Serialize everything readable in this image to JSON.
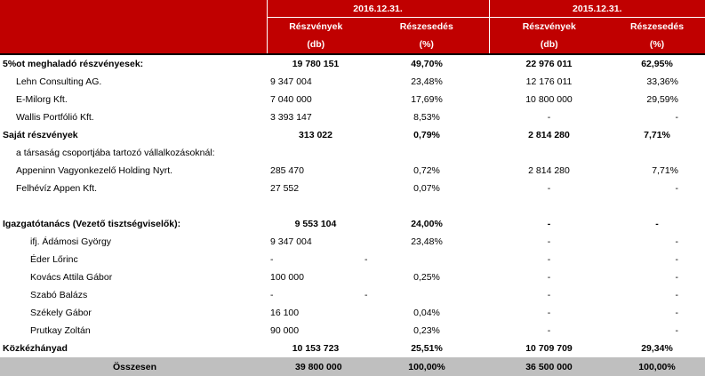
{
  "header": {
    "year1": "2016.12.31.",
    "year2": "2015.12.31.",
    "col_shares": "Részvények",
    "col_stake": "Részesedés",
    "unit_shares": "(db)",
    "unit_stake": "(%)"
  },
  "rows": [
    {
      "label": "5%ot meghaladó részvényesek:",
      "v1": "19 780 151",
      "p1": "49,70%",
      "v2": "22 976 011",
      "p2": "62,95%"
    },
    {
      "label": "Lehn Consulting AG.",
      "v1": "9 347 004",
      "p1": "23,48%",
      "v2": "12 176 011",
      "p2": "33,36%"
    },
    {
      "label": "E-Milorg Kft.",
      "v1": "7 040 000",
      "p1": "17,69%",
      "v2": "10 800 000",
      "p2": "29,59%"
    },
    {
      "label": "Wallis Portfólió Kft.",
      "v1": "3 393 147",
      "p1": "8,53%",
      "v2": "-",
      "p2": "-"
    },
    {
      "label": "Saját részvények",
      "v1": "313 022",
      "p1": "0,79%",
      "v2": "2 814 280",
      "p2": "7,71%"
    },
    {
      "label": "a társaság csoportjába tartozó vállalkozásoknál:",
      "v1": "",
      "p1": "",
      "v2": "",
      "p2": ""
    },
    {
      "label": "Appeninn Vagyonkezelő Holding Nyrt.",
      "v1": "285 470",
      "p1": "0,72%",
      "v2": "2 814 280",
      "p2": "7,71%"
    },
    {
      "label": "Felhévíz Appen Kft.",
      "v1": "27 552",
      "p1": "0,07%",
      "v2": "-",
      "p2": "-"
    },
    {
      "label": "",
      "v1": "",
      "p1": "",
      "v2": "",
      "p2": ""
    },
    {
      "label": "Igazgatótanács (Vezető tisztségviselők):",
      "v1": "9 553 104",
      "p1": "24,00%",
      "v2": "-",
      "p2": "-"
    },
    {
      "label": "ifj. Ádámosi György",
      "v1": "9 347 004",
      "p1": "23,48%",
      "v2": "-",
      "p2": "-"
    },
    {
      "label": "Éder Lőrinc",
      "v1": "-",
      "p1": "-",
      "v2": "-",
      "p2": "-"
    },
    {
      "label": "Kovács Attila Gábor",
      "v1": "100 000",
      "p1": "0,25%",
      "v2": "-",
      "p2": "-"
    },
    {
      "label": "Szabó Balázs",
      "v1": "-",
      "p1": "-",
      "v2": "-",
      "p2": "-"
    },
    {
      "label": "Székely Gábor",
      "v1": "16 100",
      "p1": "0,04%",
      "v2": "-",
      "p2": "-"
    },
    {
      "label": "Prutkay Zoltán",
      "v1": "90 000",
      "p1": "0,23%",
      "v2": "-",
      "p2": "-"
    },
    {
      "label": "Közkézhányad",
      "v1": "10 153 723",
      "p1": "25,51%",
      "v2": "10 709 709",
      "p2": "29,34%"
    }
  ],
  "total": {
    "label": "Összesen",
    "v1": "39 800 000",
    "p1": "100,00%",
    "v2": "36 500 000",
    "p2": "100,00%"
  }
}
